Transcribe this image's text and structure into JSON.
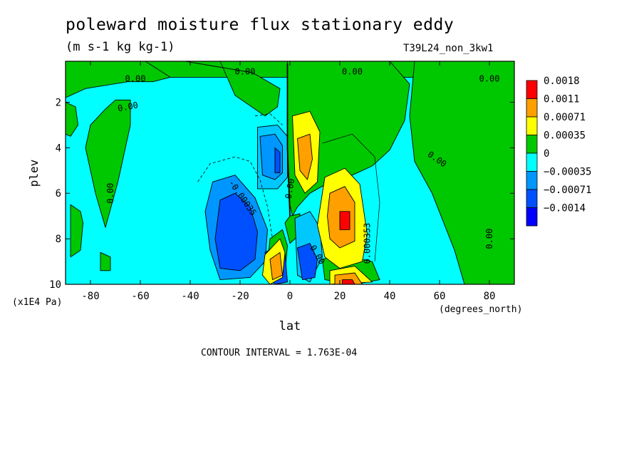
{
  "header": {
    "title": "poleward moisture flux stationary eddy",
    "units": "(m s-1 kg kg-1)",
    "run_label": "T39L24_non_3kw1"
  },
  "footer": {
    "contour_interval": "CONTOUR INTERVAL = 1.763E-04"
  },
  "chart_data": {
    "type": "heatmap",
    "title": "poleward moisture flux stationary eddy",
    "subtitle": "(m s-1 kg kg-1)",
    "xlabel": "lat",
    "x_units": "(degrees_north)",
    "ylabel": "plev",
    "y_units": "(x1E4 Pa)",
    "xlim": [
      -90,
      90
    ],
    "ylim": [
      10,
      0.2
    ],
    "x_ticks": [
      -80,
      -60,
      -40,
      -20,
      0,
      20,
      40,
      60,
      80
    ],
    "x_tick_labels": [
      "-80",
      "-60",
      "-40",
      "-20",
      "0",
      "20",
      "40",
      "60",
      "80"
    ],
    "y_ticks": [
      2,
      4,
      6,
      8,
      10
    ],
    "y_tick_labels": [
      "2",
      "4",
      "6",
      "8",
      "10"
    ],
    "legend": {
      "position": "right",
      "levels": [
        "0.0018",
        "0.0011",
        "0.00071",
        "0.00035",
        "0",
        "−0.00035",
        "−0.00071",
        "−0.0014"
      ],
      "colors": [
        "#ff0000",
        "#ff9f00",
        "#ffff00",
        "#00c800",
        "#00ffff",
        "#0096ff",
        "#0050ff",
        "#0000ff"
      ]
    },
    "background_color": "#00ffff",
    "regions": [
      {
        "value": 0.0002,
        "color": "#00c800",
        "points": [
          [
            -90,
            0.2
          ],
          [
            90,
            0.2
          ],
          [
            90,
            0.9
          ],
          [
            -90,
            0.9
          ]
        ]
      },
      {
        "value": 0.0002,
        "color": "#00c800",
        "points": [
          [
            -42,
            0.2
          ],
          [
            -28,
            0.2
          ],
          [
            -22,
            1.7
          ],
          [
            -10,
            2.6
          ],
          [
            -5,
            2.2
          ],
          [
            -4,
            1.4
          ],
          [
            -15,
            0.7
          ]
        ]
      },
      {
        "value": 0.0002,
        "color": "#00c800",
        "points": [
          [
            -1,
            0.2
          ],
          [
            40,
            0.2
          ],
          [
            48,
            1.2
          ],
          [
            46,
            2.8
          ],
          [
            40,
            4.1
          ],
          [
            33,
            4.8
          ],
          [
            25,
            5.2
          ],
          [
            16,
            5.5
          ],
          [
            8,
            6.0
          ],
          [
            3,
            6.6
          ],
          [
            1,
            7.0
          ],
          [
            0,
            6.5
          ],
          [
            -1,
            4.0
          ],
          [
            -1,
            1.0
          ]
        ]
      },
      {
        "value": 0.0002,
        "color": "#00c800",
        "points": [
          [
            50,
            0.2
          ],
          [
            90,
            0.2
          ],
          [
            90,
            10
          ],
          [
            70,
            10
          ],
          [
            66,
            8.5
          ],
          [
            57,
            6.0
          ],
          [
            50,
            4.6
          ],
          [
            48,
            2.6
          ]
        ]
      },
      {
        "value": 0.0002,
        "color": "#00c800",
        "points": [
          [
            -90,
            0.2
          ],
          [
            -90,
            1.8
          ],
          [
            -82,
            1.4
          ],
          [
            -65,
            1.1
          ],
          [
            -55,
            1.1
          ],
          [
            -48,
            0.9
          ],
          [
            -58,
            0.2
          ]
        ]
      },
      {
        "value": 0.0002,
        "color": "#00c800",
        "points": [
          [
            -70,
            1.9
          ],
          [
            -64,
            1.9
          ],
          [
            -64,
            3.0
          ],
          [
            -69,
            5.5
          ],
          [
            -74,
            7.5
          ],
          [
            -78,
            6.0
          ],
          [
            -82,
            4.0
          ],
          [
            -80,
            3.0
          ],
          [
            -74,
            2.3
          ]
        ]
      },
      {
        "value": 0.0002,
        "color": "#00c800",
        "points": [
          [
            -90,
            2.0
          ],
          [
            -86,
            2.2
          ],
          [
            -85,
            3.0
          ],
          [
            -88,
            3.5
          ],
          [
            -90,
            3.4
          ]
        ]
      },
      {
        "value": 0.0002,
        "color": "#00c800",
        "points": [
          [
            -88,
            6.5
          ],
          [
            -84,
            6.8
          ],
          [
            -83,
            7.3
          ],
          [
            -84,
            8.5
          ],
          [
            -88,
            8.8
          ]
        ]
      },
      {
        "value": 0.0002,
        "color": "#00c800",
        "points": [
          [
            -76,
            8.6
          ],
          [
            -72,
            8.8
          ],
          [
            -72,
            9.4
          ],
          [
            -76,
            9.4
          ]
        ]
      },
      {
        "value": 0.0002,
        "color": "#00c800",
        "points": [
          [
            -8,
            8.0
          ],
          [
            -3,
            7.6
          ],
          [
            -1,
            8.3
          ],
          [
            -2,
            9.5
          ],
          [
            -6,
            9.7
          ],
          [
            -9,
            9.1
          ]
        ]
      },
      {
        "value": 0.0002,
        "color": "#00c800",
        "points": [
          [
            -2,
            7.3
          ],
          [
            0,
            7.0
          ],
          [
            4,
            6.9
          ],
          [
            4,
            7.8
          ],
          [
            0,
            8.2
          ]
        ]
      },
      {
        "value": 0.0002,
        "color": "#00c800",
        "points": [
          [
            13,
            8.9
          ],
          [
            20,
            8.7
          ],
          [
            33,
            9.0
          ],
          [
            36,
            9.8
          ],
          [
            26,
            10
          ],
          [
            14,
            9.8
          ]
        ]
      },
      {
        "value": -0.0004,
        "color": "#00c8ff",
        "points": [
          [
            -13,
            3.1
          ],
          [
            -5,
            3.0
          ],
          [
            -1,
            3.5
          ],
          [
            -1,
            5.3
          ],
          [
            -5,
            5.8
          ],
          [
            -13,
            5.8
          ]
        ]
      },
      {
        "value": -0.0005,
        "color": "#0096ff",
        "points": [
          [
            -12,
            3.5
          ],
          [
            -6,
            3.4
          ],
          [
            -3,
            3.9
          ],
          [
            -3,
            5.1
          ],
          [
            -6,
            5.4
          ],
          [
            -11,
            5.2
          ]
        ]
      },
      {
        "value": -0.0009,
        "color": "#0050ff",
        "points": [
          [
            -6,
            4.0
          ],
          [
            -4,
            4.2
          ],
          [
            -4,
            5.1
          ],
          [
            -6,
            5.1
          ]
        ]
      },
      {
        "value": -0.0005,
        "color": "#0096ff",
        "points": [
          [
            -31,
            5.5
          ],
          [
            -22,
            5.2
          ],
          [
            -18,
            5.7
          ],
          [
            -14,
            6.2
          ],
          [
            -9,
            7.6
          ],
          [
            -10,
            9.0
          ],
          [
            -16,
            9.7
          ],
          [
            -28,
            9.8
          ],
          [
            -32,
            8.5
          ],
          [
            -34,
            6.8
          ]
        ]
      },
      {
        "value": -0.0009,
        "color": "#0050ff",
        "points": [
          [
            -28,
            6.3
          ],
          [
            -22,
            6.0
          ],
          [
            -16,
            6.6
          ],
          [
            -13,
            7.7
          ],
          [
            -14,
            8.9
          ],
          [
            -20,
            9.4
          ],
          [
            -28,
            9.3
          ],
          [
            -30,
            8.0
          ]
        ]
      },
      {
        "value": -0.0009,
        "color": "#0050ff",
        "points": [
          [
            -10,
            8.6
          ],
          [
            -5,
            8.3
          ],
          [
            -2,
            8.6
          ],
          [
            -1,
            9.9
          ],
          [
            -6,
            10
          ],
          [
            -9,
            9.6
          ]
        ]
      },
      {
        "value": -0.0004,
        "color": "#00c8ff",
        "points": [
          [
            2,
            7.1
          ],
          [
            8,
            6.8
          ],
          [
            12,
            7.5
          ],
          [
            13,
            8.8
          ],
          [
            8,
            9.9
          ],
          [
            3,
            9.6
          ]
        ]
      },
      {
        "value": -0.0009,
        "color": "#0050ff",
        "points": [
          [
            3,
            8.4
          ],
          [
            8,
            8.2
          ],
          [
            11,
            8.9
          ],
          [
            10,
            9.7
          ],
          [
            5,
            9.8
          ]
        ]
      },
      {
        "value": 0.0005,
        "color": "#ffff00",
        "points": [
          [
            1,
            2.6
          ],
          [
            8,
            2.4
          ],
          [
            12,
            3.3
          ],
          [
            11,
            5.5
          ],
          [
            6,
            6.0
          ],
          [
            2,
            5.2
          ]
        ]
      },
      {
        "value": 0.0009,
        "color": "#ff9f00",
        "points": [
          [
            3,
            3.6
          ],
          [
            8,
            3.4
          ],
          [
            9,
            4.5
          ],
          [
            7,
            5.4
          ],
          [
            4,
            5.0
          ]
        ]
      },
      {
        "value": 0.0005,
        "color": "#ffff00",
        "points": [
          [
            14,
            5.3
          ],
          [
            22,
            4.9
          ],
          [
            28,
            5.6
          ],
          [
            31,
            7.8
          ],
          [
            29,
            9.0
          ],
          [
            20,
            9.3
          ],
          [
            14,
            8.8
          ],
          [
            11,
            7.4
          ]
        ]
      },
      {
        "value": 0.0009,
        "color": "#ff9f00",
        "points": [
          [
            16,
            6.0
          ],
          [
            22,
            5.7
          ],
          [
            26,
            6.4
          ],
          [
            26,
            8.1
          ],
          [
            20,
            8.4
          ],
          [
            16,
            8.0
          ],
          [
            15,
            7.0
          ]
        ]
      },
      {
        "value": 0.0018,
        "color": "#ff0000",
        "points": [
          [
            20,
            6.8
          ],
          [
            24,
            6.8
          ],
          [
            24,
            7.6
          ],
          [
            20,
            7.6
          ]
        ]
      },
      {
        "value": 0.0005,
        "color": "#ffff00",
        "points": [
          [
            -10,
            8.7
          ],
          [
            -4,
            8.0
          ],
          [
            -2,
            8.6
          ],
          [
            -3,
            9.7
          ],
          [
            -8,
            10
          ],
          [
            -11,
            9.6
          ]
        ]
      },
      {
        "value": 0.0009,
        "color": "#ff9f00",
        "points": [
          [
            -8,
            8.9
          ],
          [
            -4,
            8.6
          ],
          [
            -3,
            9.6
          ],
          [
            -7,
            9.8
          ]
        ]
      },
      {
        "value": 0.0005,
        "color": "#ffff00",
        "points": [
          [
            16,
            9.4
          ],
          [
            26,
            9.2
          ],
          [
            33,
            9.9
          ],
          [
            16,
            10
          ]
        ]
      },
      {
        "value": 0.0009,
        "color": "#ff9f00",
        "points": [
          [
            18,
            9.6
          ],
          [
            26,
            9.5
          ],
          [
            29,
            10
          ],
          [
            18,
            10
          ]
        ]
      },
      {
        "value": 0.0018,
        "color": "#ff0000",
        "points": [
          [
            21,
            9.8
          ],
          [
            25,
            9.8
          ],
          [
            26,
            10
          ],
          [
            21,
            10
          ]
        ]
      }
    ],
    "contour_labels": [
      {
        "text": "0.00",
        "x": -62,
        "y": 0.97,
        "rotate": 0
      },
      {
        "text": "0.00",
        "x": -18,
        "y": 0.65,
        "rotate": 0
      },
      {
        "text": "0.00",
        "x": 25,
        "y": 0.65,
        "rotate": 0
      },
      {
        "text": "0.00",
        "x": 80,
        "y": 0.97,
        "rotate": 0
      },
      {
        "text": "0.00",
        "x": -65,
        "y": 2.2,
        "rotate": -10
      },
      {
        "text": "0.00",
        "x": 59,
        "y": 4.5,
        "rotate": 35
      },
      {
        "text": "0.00",
        "x": 80,
        "y": 8.0,
        "rotate": -90
      },
      {
        "text": "0.00",
        "x": -72,
        "y": 6.0,
        "rotate": -90
      },
      {
        "text": "0.00",
        "x": 0,
        "y": 5.8,
        "rotate": -80
      },
      {
        "text": "-0.00035",
        "x": -19,
        "y": 6.2,
        "rotate": 55
      },
      {
        "text": "0.000353",
        "x": 31,
        "y": 8.2,
        "rotate": -90
      },
      {
        "text": "0.00",
        "x": 11,
        "y": 8.7,
        "rotate": 60
      }
    ],
    "dashed_contours": [
      [
        [
          -37,
          5.5
        ],
        [
          -32,
          4.7
        ],
        [
          -22,
          4.4
        ],
        [
          -16,
          4.6
        ],
        [
          -12,
          5.4
        ],
        [
          -9,
          6.6
        ],
        [
          -7,
          8.0
        ]
      ],
      [
        [
          -14,
          2.6
        ],
        [
          -8,
          2.5
        ],
        [
          -3,
          3.0
        ]
      ]
    ],
    "solid_contours": [
      [
        [
          13,
          3.8
        ],
        [
          25,
          3.4
        ],
        [
          34,
          4.4
        ],
        [
          36,
          6.4
        ],
        [
          34,
          9.0
        ]
      ],
      [
        [
          -1,
          0.3
        ],
        [
          -1,
          4.0
        ],
        [
          0,
          7.0
        ]
      ]
    ]
  }
}
